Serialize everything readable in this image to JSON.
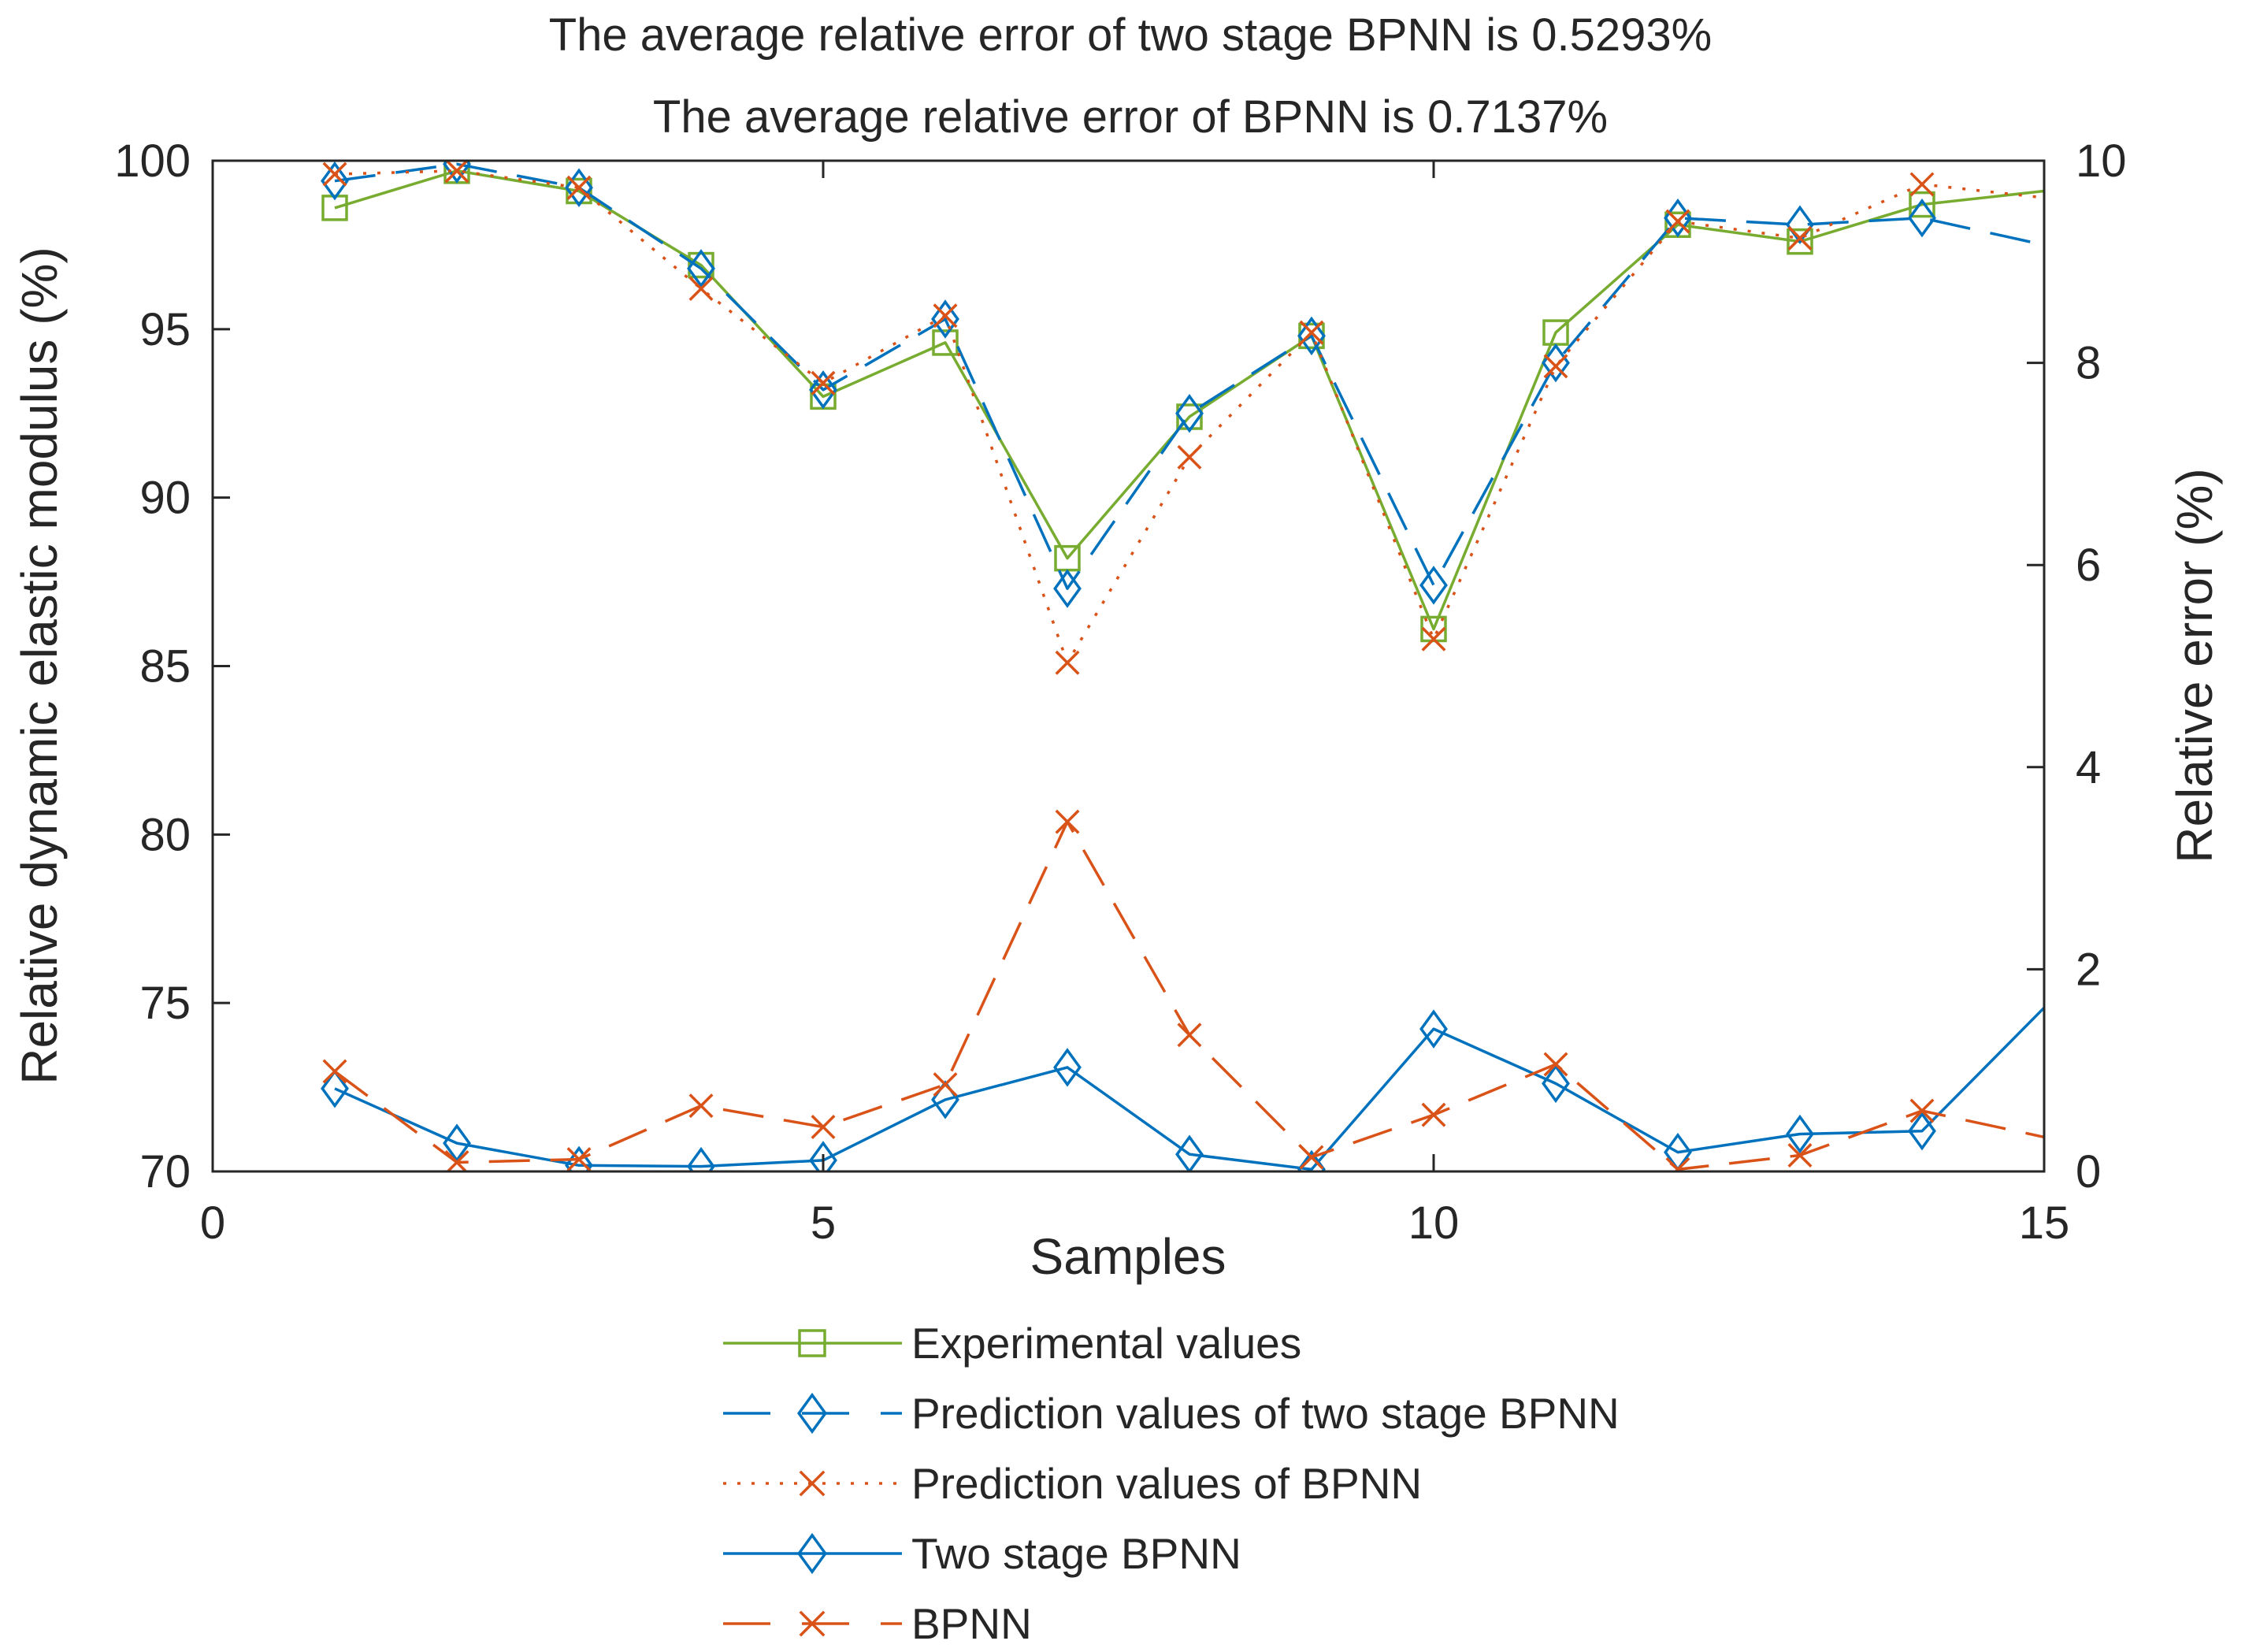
{
  "chart_data": {
    "type": "line",
    "title_lines": [
      "The average relative error of two stage BPNN is 0.5293%",
      "The average relative error of BPNN is 0.7137%"
    ],
    "xlabel": "Samples",
    "ylabel_left": "Relative dynamic elastic modulus (%)",
    "ylabel_right": "Relative error (%)",
    "xlim": [
      0,
      15
    ],
    "ylim_left": [
      70,
      100
    ],
    "ylim_right": [
      0,
      10
    ],
    "xticks": [
      0,
      5,
      10,
      15
    ],
    "yticks_left": [
      70,
      75,
      80,
      85,
      90,
      95,
      100
    ],
    "yticks_right": [
      0,
      2,
      4,
      6,
      8,
      10
    ],
    "grid": false,
    "legend_position": "below",
    "x": [
      1,
      2,
      3,
      4,
      5,
      6,
      7,
      8,
      9,
      10,
      11,
      12,
      13,
      14
    ],
    "series": [
      {
        "name": "Experimental values",
        "axis": "left",
        "color": "#77AC30",
        "line": "solid",
        "marker": "square",
        "values": [
          98.6,
          99.7,
          99.1,
          96.9,
          93.0,
          94.6,
          88.2,
          92.4,
          94.8,
          86.1,
          94.9,
          98.1,
          97.6,
          98.7
        ],
        "extension": [
          15,
          99.1
        ]
      },
      {
        "name": "Prediction values of two stage BPNN",
        "axis": "left",
        "color": "#0072BD",
        "line": "dash",
        "marker": "diamond",
        "values": [
          99.4,
          99.9,
          99.2,
          96.8,
          93.2,
          95.3,
          87.3,
          92.5,
          94.8,
          87.4,
          94.0,
          98.3,
          98.1,
          98.3
        ],
        "extension": [
          15,
          97.5
        ]
      },
      {
        "name": "Prediction values of BPNN",
        "axis": "left",
        "color": "#D95319",
        "line": "dot",
        "marker": "x",
        "values": [
          99.6,
          99.7,
          99.2,
          96.2,
          93.4,
          95.4,
          85.1,
          91.2,
          94.9,
          85.8,
          93.9,
          98.2,
          97.7,
          99.3
        ],
        "extension": [
          15,
          98.9
        ]
      },
      {
        "name": "Two stage BPNN",
        "axis": "right",
        "color": "#0072BD",
        "line": "solid",
        "marker": "diamond",
        "values": [
          0.82,
          0.28,
          0.06,
          0.05,
          0.11,
          0.71,
          1.03,
          0.17,
          0.02,
          1.41,
          0.87,
          0.19,
          0.37,
          0.4
        ],
        "extension": [
          15,
          1.62
        ]
      },
      {
        "name": "BPNN",
        "axis": "right",
        "color": "#D95319",
        "line": "dash",
        "marker": "x",
        "values": [
          0.99,
          0.09,
          0.12,
          0.65,
          0.44,
          0.86,
          3.46,
          1.35,
          0.14,
          0.56,
          1.06,
          0.02,
          0.16,
          0.6
        ],
        "extension": [
          15,
          0.34
        ]
      }
    ]
  }
}
